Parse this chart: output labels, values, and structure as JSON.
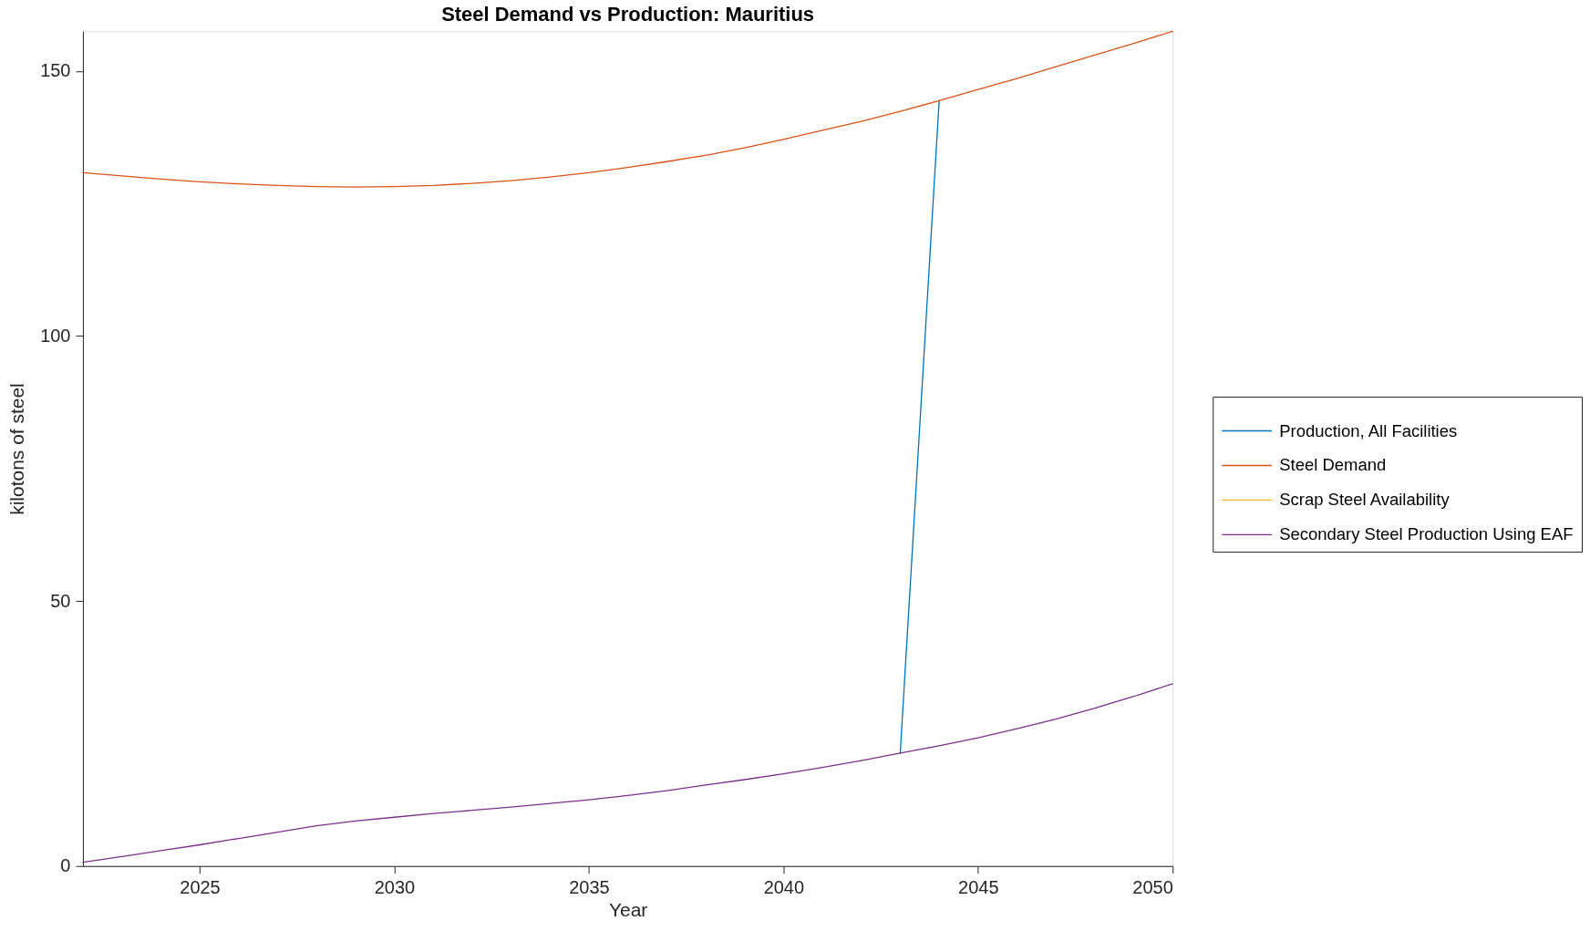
{
  "chart_data": {
    "type": "line",
    "title": "Steel Demand vs Production: Mauritius",
    "xlabel": "Year",
    "ylabel": "kilotons of steel",
    "x": [
      2022,
      2023,
      2024,
      2025,
      2026,
      2027,
      2028,
      2029,
      2030,
      2031,
      2032,
      2033,
      2034,
      2035,
      2036,
      2037,
      2038,
      2039,
      2040,
      2041,
      2042,
      2043,
      2044,
      2045,
      2046,
      2047,
      2048,
      2049,
      2050
    ],
    "series": [
      {
        "name": "Production, All Facilities",
        "color": "#0072bd",
        "values": [
          null,
          null,
          null,
          null,
          null,
          null,
          null,
          null,
          null,
          null,
          null,
          null,
          null,
          null,
          null,
          null,
          null,
          null,
          null,
          null,
          null,
          21.3,
          144.4,
          null,
          null,
          null,
          null,
          null,
          null
        ]
      },
      {
        "name": "Steel Demand",
        "color": "#d95319",
        "values": [
          130.8,
          130.2,
          129.6,
          129.1,
          128.7,
          128.4,
          128.2,
          128.1,
          128.2,
          128.4,
          128.8,
          129.3,
          130.0,
          130.8,
          131.8,
          132.9,
          134.1,
          135.5,
          137.1,
          138.8,
          140.5,
          142.4,
          144.4,
          146.5,
          148.6,
          150.8,
          153.0,
          155.2,
          157.5
        ]
      },
      {
        "name": "Scrap Steel Availability",
        "color": "#edb120",
        "values": [
          null,
          null,
          null,
          null,
          null,
          null,
          null,
          null,
          null,
          null,
          null,
          null,
          null,
          null,
          null,
          null,
          null,
          null,
          null,
          null,
          null,
          null,
          null,
          null,
          null,
          null,
          null,
          null,
          null
        ]
      },
      {
        "name": "Secondary Steel Production Using EAF",
        "color": "#7e2f8e",
        "values": [
          0.7,
          1.8,
          2.9,
          4.0,
          5.2,
          6.4,
          7.6,
          8.5,
          9.2,
          9.9,
          10.5,
          11.1,
          11.8,
          12.5,
          13.3,
          14.2,
          15.3,
          16.3,
          17.4,
          18.6,
          19.9,
          21.3,
          22.7,
          24.2,
          25.9,
          27.7,
          29.8,
          32.0,
          34.4
        ]
      }
    ],
    "xlim": [
      2022,
      2050
    ],
    "ylim": [
      0,
      157.5
    ],
    "xticks": [
      2025,
      2030,
      2035,
      2040,
      2045,
      2050
    ],
    "yticks": [
      0,
      50,
      100,
      150
    ],
    "grid": false,
    "legend": "right",
    "line_style": "solid"
  }
}
